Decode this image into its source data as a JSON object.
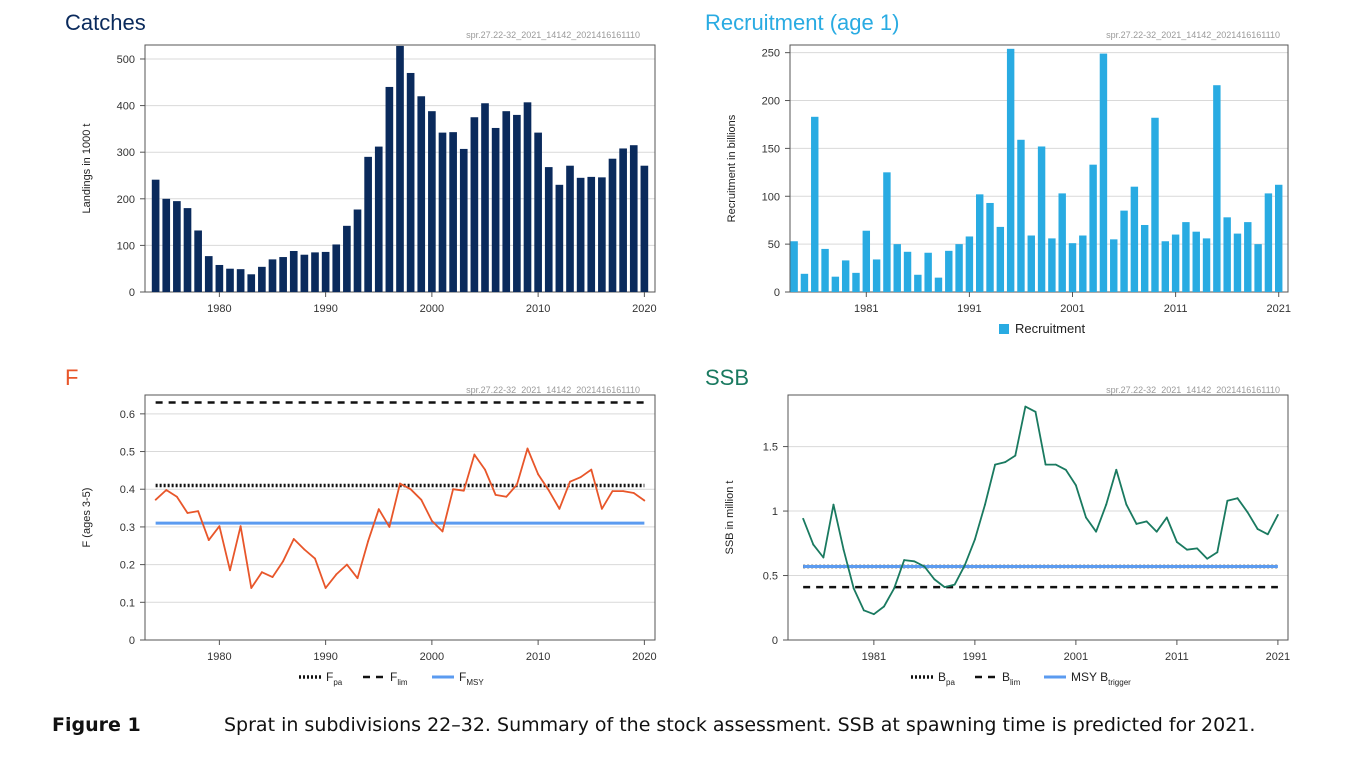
{
  "run_code": "spr.27.22-32_2021_14142_2021416161110",
  "caption": {
    "label": "Figure 1",
    "text": "Sprat in subdivisions 22–32. Summary of the stock assessment. SSB at spawning time is predicted for 2021."
  },
  "chart_data": [
    {
      "id": "catch",
      "type": "bar",
      "title": "Catches",
      "title_color": "#0a2a5c",
      "bar_color": "#0a2a5c",
      "ylabel": "Landings in 1000 t",
      "xlabel": "",
      "ylim": [
        0,
        530
      ],
      "yticks": [
        0,
        100,
        200,
        300,
        400,
        500
      ],
      "xlim": [
        1973,
        2021
      ],
      "xticks": [
        1980,
        1990,
        2000,
        2010,
        2020
      ],
      "grid": "horizontal",
      "x": [
        1974,
        1975,
        1976,
        1977,
        1978,
        1979,
        1980,
        1981,
        1982,
        1983,
        1984,
        1985,
        1986,
        1987,
        1988,
        1989,
        1990,
        1991,
        1992,
        1993,
        1994,
        1995,
        1996,
        1997,
        1998,
        1999,
        2000,
        2001,
        2002,
        2003,
        2004,
        2005,
        2006,
        2007,
        2008,
        2009,
        2010,
        2011,
        2012,
        2013,
        2014,
        2015,
        2016,
        2017,
        2018,
        2019,
        2020
      ],
      "values": [
        241,
        200,
        195,
        180,
        132,
        77,
        58,
        50,
        49,
        38,
        54,
        70,
        75,
        88,
        80,
        85,
        86,
        102,
        142,
        177,
        290,
        312,
        440,
        528,
        470,
        420,
        388,
        342,
        343,
        307,
        375,
        405,
        352,
        388,
        380,
        407,
        342,
        268,
        230,
        271,
        245,
        247,
        246,
        286,
        308,
        315,
        271
      ]
    },
    {
      "id": "rec",
      "type": "bar",
      "title": "Recruitment (age 1)",
      "title_color": "#29abe2",
      "bar_color": "#29abe2",
      "ylabel": "Recruitment in billions",
      "xlabel": "",
      "ylim": [
        0,
        258
      ],
      "yticks": [
        0,
        50,
        100,
        150,
        200,
        250
      ],
      "xlim": [
        1973.6,
        2021.9
      ],
      "xticks": [
        1981,
        1991,
        2001,
        2011,
        2021
      ],
      "grid": "horizontal",
      "legend": {
        "position": "bottom",
        "items": [
          {
            "name": "Recruitment",
            "style": "box",
            "color": "#29abe2"
          }
        ]
      },
      "x": [
        1974,
        1975,
        1976,
        1977,
        1978,
        1979,
        1980,
        1981,
        1982,
        1983,
        1984,
        1985,
        1986,
        1987,
        1988,
        1989,
        1990,
        1991,
        1992,
        1993,
        1994,
        1995,
        1996,
        1997,
        1998,
        1999,
        2000,
        2001,
        2002,
        2003,
        2004,
        2005,
        2006,
        2007,
        2008,
        2009,
        2010,
        2011,
        2012,
        2013,
        2014,
        2015,
        2016,
        2017,
        2018,
        2019,
        2020,
        2021
      ],
      "values": [
        53,
        19,
        183,
        45,
        16,
        33,
        20,
        64,
        34,
        125,
        50,
        42,
        18,
        41,
        15,
        43,
        50,
        58,
        102,
        93,
        68,
        254,
        159,
        59,
        152,
        56,
        103,
        51,
        59,
        133,
        249,
        55,
        85,
        110,
        70,
        182,
        53,
        60,
        73,
        63,
        56,
        216,
        78,
        61,
        73,
        50,
        103,
        112
      ]
    },
    {
      "id": "f",
      "type": "line",
      "title": "F",
      "title_color": "#e8562a",
      "ylabel": "F (ages 3-5)",
      "xlabel": "",
      "ylim": [
        0,
        0.65
      ],
      "yticks": [
        0,
        0.1,
        0.2,
        0.3,
        0.4,
        0.5,
        0.6
      ],
      "ytick_labels": [
        "0",
        "0.1",
        "0.2",
        "0.3",
        "0.4",
        "0.5",
        "0.6"
      ],
      "xlim": [
        1973,
        2021
      ],
      "xticks": [
        1980,
        1990,
        2000,
        2010,
        2020
      ],
      "grid": "horizontal",
      "x": [
        1974,
        1975,
        1976,
        1977,
        1978,
        1979,
        1980,
        1981,
        1982,
        1983,
        1984,
        1985,
        1986,
        1987,
        1988,
        1989,
        1990,
        1991,
        1992,
        1993,
        1994,
        1995,
        1996,
        1997,
        1998,
        1999,
        2000,
        2001,
        2002,
        2003,
        2004,
        2005,
        2006,
        2007,
        2008,
        2009,
        2010,
        2011,
        2012,
        2013,
        2014,
        2015,
        2016,
        2017,
        2018,
        2019,
        2020
      ],
      "series": [
        {
          "name": "",
          "color": "#e8562a",
          "values": [
            0.372,
            0.398,
            0.38,
            0.337,
            0.342,
            0.265,
            0.302,
            0.185,
            0.302,
            0.138,
            0.18,
            0.167,
            0.209,
            0.268,
            0.24,
            0.216,
            0.138,
            0.174,
            0.2,
            0.164,
            0.262,
            0.347,
            0.3,
            0.415,
            0.4,
            0.372,
            0.316,
            0.288,
            0.4,
            0.396,
            0.492,
            0.452,
            0.385,
            0.38,
            0.412,
            0.508,
            0.44,
            0.397,
            0.348,
            0.42,
            0.432,
            0.452,
            0.348,
            0.395,
            0.395,
            0.39,
            0.37
          ]
        }
      ],
      "reference_lines": [
        {
          "name": "F_pa",
          "value": 0.41,
          "color": "#111111",
          "style": "dotted"
        },
        {
          "name": "F_lim",
          "value": 0.63,
          "color": "#111111",
          "style": "dashed"
        },
        {
          "name": "F_MSY",
          "value": 0.31,
          "color": "#5b9bf0",
          "style": "solid"
        }
      ],
      "legend": {
        "position": "bottom",
        "items": [
          {
            "main": "F",
            "sub": "pa",
            "style": "dotted",
            "color": "#111111"
          },
          {
            "main": "F",
            "sub": "lim",
            "style": "dashed",
            "color": "#111111"
          },
          {
            "main": "F",
            "sub": "MSY",
            "style": "solid",
            "color": "#5b9bf0"
          }
        ]
      }
    },
    {
      "id": "ssb",
      "type": "line",
      "title": "SSB",
      "title_color": "#1a7a60",
      "ylabel": "SSB in million t",
      "xlabel": "",
      "ylim": [
        0,
        1.9
      ],
      "yticks": [
        0,
        0.5,
        1,
        1.5
      ],
      "ytick_labels": [
        "0",
        "0.5",
        "1",
        "1.5"
      ],
      "xlim": [
        1972.5,
        2022
      ],
      "xticks": [
        1981,
        1991,
        2001,
        2011,
        2021
      ],
      "grid": "horizontal",
      "x": [
        1974,
        1975,
        1976,
        1977,
        1978,
        1979,
        1980,
        1981,
        1982,
        1983,
        1984,
        1985,
        1986,
        1987,
        1988,
        1989,
        1990,
        1991,
        1992,
        1993,
        1994,
        1995,
        1996,
        1997,
        1998,
        1999,
        2000,
        2001,
        2002,
        2003,
        2004,
        2005,
        2006,
        2007,
        2008,
        2009,
        2010,
        2011,
        2012,
        2013,
        2014,
        2015,
        2016,
        2017,
        2018,
        2019,
        2020,
        2021
      ],
      "series": [
        {
          "name": "",
          "color": "#1a7a60",
          "values": [
            0.94,
            0.74,
            0.64,
            1.05,
            0.7,
            0.4,
            0.23,
            0.2,
            0.26,
            0.4,
            0.62,
            0.61,
            0.57,
            0.47,
            0.41,
            0.43,
            0.58,
            0.78,
            1.05,
            1.36,
            1.38,
            1.43,
            1.81,
            1.77,
            1.36,
            1.36,
            1.32,
            1.2,
            0.95,
            0.84,
            1.05,
            1.32,
            1.05,
            0.9,
            0.92,
            0.84,
            0.95,
            0.76,
            0.7,
            0.71,
            0.63,
            0.68,
            1.08,
            1.1,
            0.99,
            0.86,
            0.82,
            0.97
          ]
        }
      ],
      "reference_lines": [
        {
          "name": "B_pa",
          "value": 0.57,
          "color": "#111111",
          "style": "dotted"
        },
        {
          "name": "B_lim",
          "value": 0.41,
          "color": "#111111",
          "style": "dashed"
        },
        {
          "name": "MSY B_trigger",
          "value": 0.57,
          "color": "#5b9bf0",
          "style": "solid"
        }
      ],
      "legend": {
        "position": "bottom",
        "items": [
          {
            "main": "B",
            "sub": "pa",
            "style": "dotted",
            "color": "#111111"
          },
          {
            "main": "B",
            "sub": "lim",
            "style": "dashed",
            "color": "#111111"
          },
          {
            "main": "MSY B",
            "sub": "trigger",
            "style": "solid",
            "color": "#5b9bf0"
          }
        ]
      }
    }
  ]
}
